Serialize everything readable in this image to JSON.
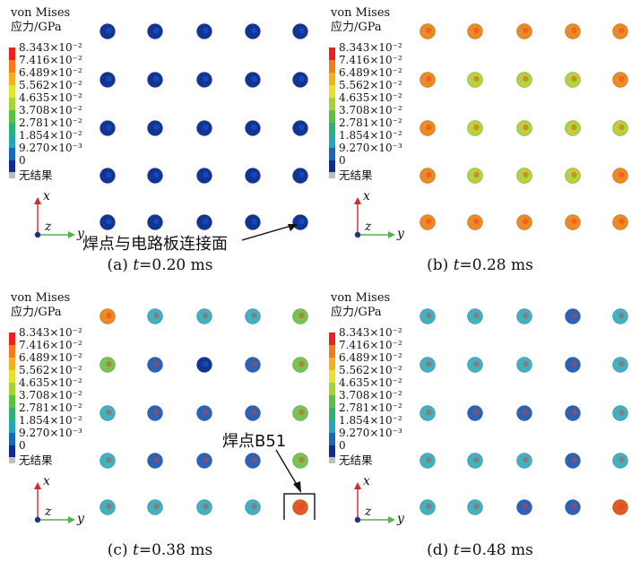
{
  "legend": {
    "title_line1": "von Mises",
    "title_line2": "应力/GPa",
    "labels": [
      "8.343×10⁻²",
      "7.416×10⁻²",
      "6.489×10⁻²",
      "5.562×10⁻²",
      "4.635×10⁻²",
      "3.708×10⁻²",
      "2.781×10⁻²",
      "1.854×10⁻²",
      "9.270×10⁻³",
      "0"
    ],
    "colors": [
      "#e8231e",
      "#f47a1c",
      "#f2b21f",
      "#e6e42a",
      "#a5d235",
      "#5fbf43",
      "#2fb07b",
      "#22a7b4",
      "#1a66b8",
      "#0c2f8c"
    ],
    "no_result": "无结果",
    "no_result_color": "#bdbdbd"
  },
  "axes": {
    "x": "x",
    "y": "y",
    "z": "z",
    "x_color": "#d8262a",
    "y_color": "#4fb44a",
    "z_color": "#1d2f8f"
  },
  "panels": [
    {
      "caption_prefix": "(a) ",
      "caption_t": "t",
      "caption_rest": "=0.20 ms",
      "grid": [
        [
          "dark",
          "dark",
          "dark",
          "dark",
          "dark"
        ],
        [
          "dark",
          "dark",
          "dark",
          "dark",
          "dark"
        ],
        [
          "dark",
          "dark",
          "dark",
          "dark",
          "dark"
        ],
        [
          "dark",
          "dark",
          "dark",
          "dark",
          "dark"
        ],
        [
          "dark",
          "dark",
          "dark",
          "dark",
          "dark"
        ]
      ],
      "annotation": "焊点与电路板连接面"
    },
    {
      "caption_prefix": "(b) ",
      "caption_t": "t",
      "caption_rest": "=0.28 ms",
      "grid": [
        [
          "orange",
          "orange",
          "orange",
          "orange",
          "orange"
        ],
        [
          "orange",
          "yellow",
          "yellow",
          "yellow",
          "orange"
        ],
        [
          "orange",
          "yellow",
          "yellow",
          "yellow",
          "yellow"
        ],
        [
          "orange",
          "yellow",
          "yellow",
          "yellow",
          "orange"
        ],
        [
          "orange",
          "orange",
          "orange",
          "orange",
          "orange"
        ]
      ]
    },
    {
      "caption_prefix": "(c) ",
      "caption_t": "t",
      "caption_rest": "=0.38 ms",
      "grid": [
        [
          "orange",
          "teal",
          "teal",
          "teal",
          "green"
        ],
        [
          "green",
          "blue",
          "dark",
          "blue",
          "green"
        ],
        [
          "teal",
          "blue",
          "blue",
          "blue",
          "green"
        ],
        [
          "teal",
          "blue",
          "blue",
          "blue",
          "green"
        ],
        [
          "teal",
          "teal",
          "teal",
          "teal",
          "red"
        ]
      ],
      "annotation": "焊点B51"
    },
    {
      "caption_prefix": "(d) ",
      "caption_t": "t",
      "caption_rest": "=0.48 ms",
      "grid": [
        [
          "teal",
          "teal",
          "teal",
          "blue",
          "teal"
        ],
        [
          "teal",
          "teal",
          "teal",
          "blue",
          "teal"
        ],
        [
          "teal",
          "blue",
          "blue",
          "blue",
          "teal"
        ],
        [
          "teal",
          "teal",
          "teal",
          "blue",
          "teal"
        ],
        [
          "teal",
          "teal",
          "blue",
          "blue",
          "red"
        ]
      ]
    }
  ],
  "dot_colors": {
    "dark": "#0f3598",
    "orange": "#ef8a22",
    "yellow": "#b6d43a",
    "teal": "#3fb3c4",
    "green": "#78c452",
    "blue": "#2a63b9",
    "red": "#e25b23"
  }
}
